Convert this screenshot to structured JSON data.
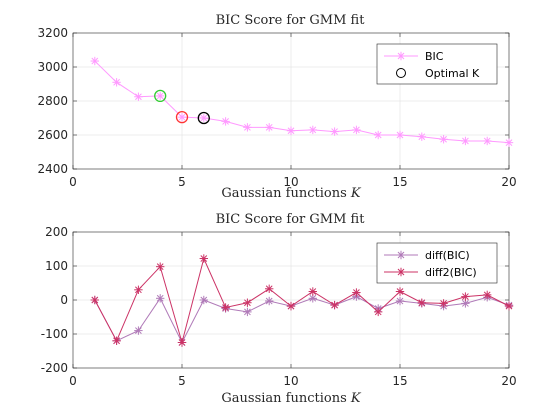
{
  "chart_data": [
    {
      "type": "line",
      "title": "BIC Score for GMM fit",
      "xlabel_text": "Gaussian functions ",
      "xlabel_var": "K",
      "xlim": [
        0,
        20
      ],
      "ylim": [
        2400,
        3200
      ],
      "xticks": [
        0,
        5,
        10,
        15,
        20
      ],
      "yticks": [
        2400,
        2600,
        2800,
        3000,
        3200
      ],
      "grid": true,
      "legend_position": "top-right",
      "x": [
        1,
        2,
        3,
        4,
        5,
        6,
        7,
        8,
        9,
        10,
        11,
        12,
        13,
        14,
        15,
        16,
        17,
        18,
        19,
        20
      ],
      "series": [
        {
          "name": "BIC",
          "color": "#ff99ff",
          "marker": "asterisk",
          "values": [
            3035,
            2910,
            2825,
            2830,
            2705,
            2700,
            2680,
            2645,
            2645,
            2625,
            2630,
            2620,
            2630,
            2600,
            2600,
            2590,
            2575,
            2565,
            2565,
            2555
          ]
        }
      ],
      "markers": [
        {
          "name": "Optimal K",
          "x": 4,
          "y": 2830,
          "color": "#33cc33",
          "legend": false
        },
        {
          "name": "Optimal K",
          "x": 5,
          "y": 2705,
          "color": "#ff3333",
          "legend": false
        },
        {
          "name": "Optimal K",
          "x": 6,
          "y": 2700,
          "color": "#000000",
          "legend": true
        }
      ]
    },
    {
      "type": "line",
      "title": "BIC Score for GMM fit",
      "xlabel_text": "Gaussian functions ",
      "xlabel_var": "K",
      "xlim": [
        0,
        20
      ],
      "ylim": [
        -200,
        200
      ],
      "xticks": [
        0,
        5,
        10,
        15,
        20
      ],
      "yticks": [
        -200,
        -100,
        0,
        100,
        200
      ],
      "grid": true,
      "legend_position": "top-right",
      "x": [
        1,
        2,
        3,
        4,
        5,
        6,
        7,
        8,
        9,
        10,
        11,
        12,
        13,
        14,
        15,
        16,
        17,
        18,
        19,
        20
      ],
      "series": [
        {
          "name": "diff(BIC)",
          "color": "#b07ab8",
          "marker": "asterisk",
          "values": [
            0,
            -120,
            -90,
            5,
            -125,
            0,
            -25,
            -35,
            -3,
            -18,
            5,
            -15,
            10,
            -25,
            -3,
            -10,
            -18,
            -10,
            8,
            -15
          ]
        },
        {
          "name": "diff2(BIC)",
          "color": "#cc3366",
          "marker": "asterisk",
          "values": [
            0,
            -120,
            30,
            98,
            -125,
            122,
            -22,
            -8,
            33,
            -18,
            25,
            -15,
            22,
            -35,
            25,
            -8,
            -10,
            10,
            15,
            -18
          ]
        }
      ]
    }
  ]
}
